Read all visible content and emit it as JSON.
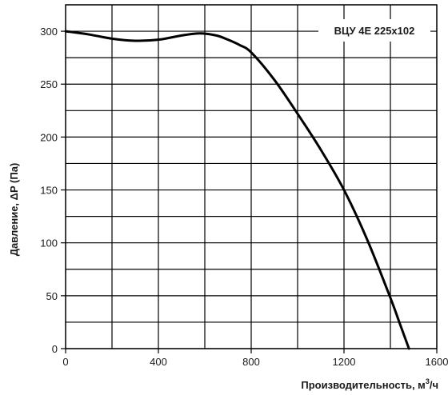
{
  "chart_data": {
    "type": "line",
    "title": "",
    "xlabel": "Производительность,  м",
    "xlabel_sup": "3",
    "xlabel_suffix": "/ч",
    "ylabel": "Давление, ΔP (Па)",
    "xlim": [
      0,
      1600
    ],
    "ylim": [
      0,
      325
    ],
    "x_ticks": [
      0,
      400,
      800,
      1200,
      1600
    ],
    "y_ticks": [
      0,
      50,
      100,
      150,
      200,
      250,
      300
    ],
    "x_grid_step": 200,
    "y_grid_step": 25,
    "grid": true,
    "legend_position": "top-right",
    "series": [
      {
        "name": "ВЦУ 4Е 225х102",
        "color": "#000000",
        "x": [
          0,
          100,
          200,
          300,
          400,
          500,
          580,
          650,
          700,
          750,
          800,
          900,
          1000,
          1100,
          1200,
          1300,
          1400,
          1440,
          1480
        ],
        "y": [
          300,
          297,
          293,
          291,
          292,
          296,
          298,
          296,
          292,
          287,
          280,
          254,
          222,
          188,
          150,
          103,
          48,
          24,
          0
        ]
      }
    ]
  }
}
